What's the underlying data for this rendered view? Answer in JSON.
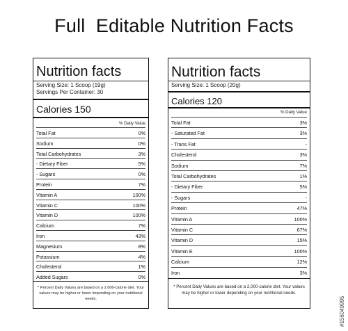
{
  "page_title": "Full  Editable Nutrition Facts",
  "watermark_id": "#156049995",
  "left_label": {
    "title": "Nutrition facts",
    "serving_size": "Serving Size: 1 Scoop (19g)",
    "servings_per_container": "Servings Per Container: 30",
    "calories": "Calories 150",
    "dv_header": "% Daily Value",
    "rows": [
      {
        "name": "Total Fat",
        "value": "0%"
      },
      {
        "name": "Sodium",
        "value": "0%"
      },
      {
        "name": "Total Carbohydrates",
        "value": "3%"
      },
      {
        "name": " - Dietary Fiber",
        "value": "5%"
      },
      {
        "name": " - Sugars",
        "value": "0%"
      },
      {
        "name": "Protein",
        "value": "7%"
      },
      {
        "name": "Vitamin A",
        "value": "100%"
      },
      {
        "name": "Vitamin C",
        "value": "100%"
      },
      {
        "name": "Vitamin D",
        "value": "100%"
      },
      {
        "name": "Calcium",
        "value": "7%"
      },
      {
        "name": "Iron",
        "value": "43%"
      },
      {
        "name": "Magnesium",
        "value": "8%"
      },
      {
        "name": "Potassium",
        "value": "4%"
      },
      {
        "name": "Cholesterol",
        "value": "1%"
      },
      {
        "name": "Added Sugars",
        "value": "0%"
      }
    ],
    "footnote": "* Percent Daily Values are based on a 2,000-calorie diet. Your values may be higher or lower depending on your nutritional needs."
  },
  "right_label": {
    "title": "Nutrition facts",
    "serving_size": "Serving Size: 1 Scoop (20g)",
    "calories": "Calories 120",
    "dv_header": "% Daily Value",
    "rows": [
      {
        "name": "Total Fat",
        "value": "3%"
      },
      {
        "name": "- Saturated Fat",
        "value": "3%"
      },
      {
        "name": "- Trans Fat",
        "value": "-"
      },
      {
        "name": "Cholesterol",
        "value": "3%"
      },
      {
        "name": "Sodium",
        "value": "7%"
      },
      {
        "name": "Total Carbohydrates",
        "value": "1%"
      },
      {
        "name": "- Dietary Fiber",
        "value": "5%"
      },
      {
        "name": "- Sugars",
        "value": "-"
      },
      {
        "name": "Protein",
        "value": "47%"
      },
      {
        "name": "Vitamin A",
        "value": "100%"
      },
      {
        "name": "Vitamin C",
        "value": "67%"
      },
      {
        "name": "Vitamin D",
        "value": "15%"
      },
      {
        "name": "Vitamin E",
        "value": "100%"
      },
      {
        "name": "Calcium",
        "value": "12%"
      },
      {
        "name": "Iron",
        "value": "3%"
      }
    ],
    "footnote": "* Percent Daily Values are based on a 2,000-calorie diet. Your values may be higher or lower depending on your nutritional needs."
  }
}
